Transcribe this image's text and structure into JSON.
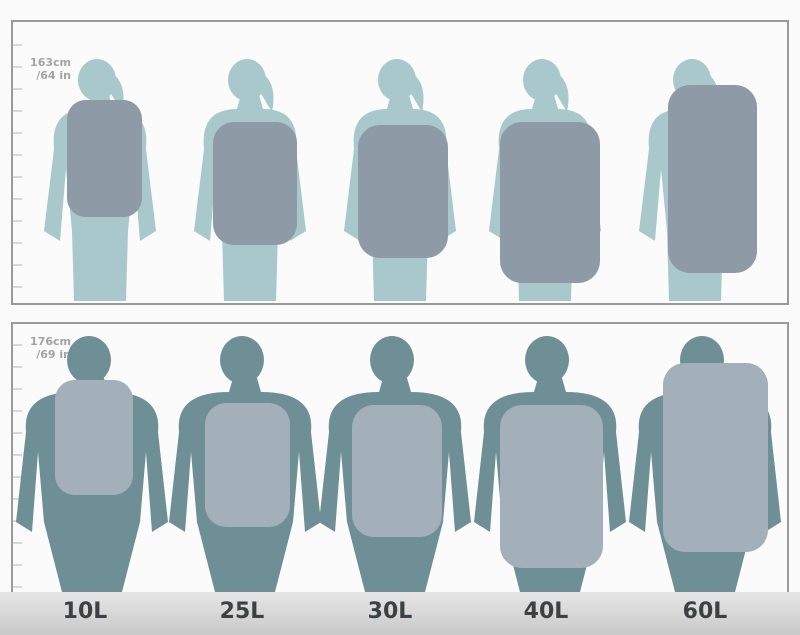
{
  "top_row": {
    "height_label_cm": "163cm",
    "height_label_in": "/64 in",
    "figure": "female-silhouette",
    "figure_color": "#a9c8cc",
    "pack_color": "#8e9aa6"
  },
  "bottom_row": {
    "height_label_cm": "176cm",
    "height_label_in": "/69 in",
    "figure": "male-silhouette",
    "figure_color": "#6f8f96",
    "pack_color": "#a3afb9"
  },
  "sizes": [
    "10L",
    "25L",
    "30L",
    "40L",
    "60L"
  ]
}
